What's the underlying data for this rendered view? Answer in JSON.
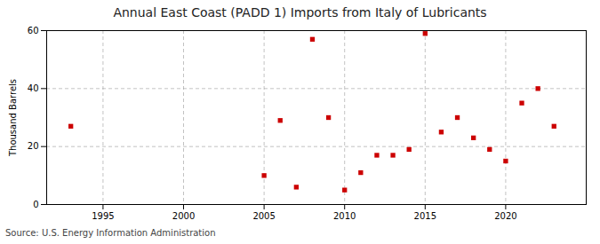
{
  "chart_data": {
    "type": "scatter",
    "title": "Annual East Coast (PADD 1) Imports from Italy of Lubricants",
    "ylabel": "Thousand Barrels",
    "source": "Source: U.S. Energy Information Administration",
    "x": [
      1993,
      2005,
      2006,
      2007,
      2008,
      2009,
      2010,
      2011,
      2012,
      2013,
      2014,
      2015,
      2016,
      2017,
      2018,
      2019,
      2020,
      2021,
      2022,
      2023
    ],
    "values": [
      27,
      10,
      29,
      6,
      57,
      30,
      5,
      11,
      17,
      17,
      19,
      59,
      25,
      30,
      23,
      19,
      15,
      35,
      40,
      27
    ],
    "color": "#cc0000",
    "marker": "square",
    "xlim": [
      1991.5,
      2025
    ],
    "ylim": [
      0,
      60
    ],
    "xticks": [
      1995,
      2000,
      2005,
      2010,
      2015,
      2020
    ],
    "yticks": [
      0,
      20,
      40,
      60
    ],
    "grid": true
  }
}
